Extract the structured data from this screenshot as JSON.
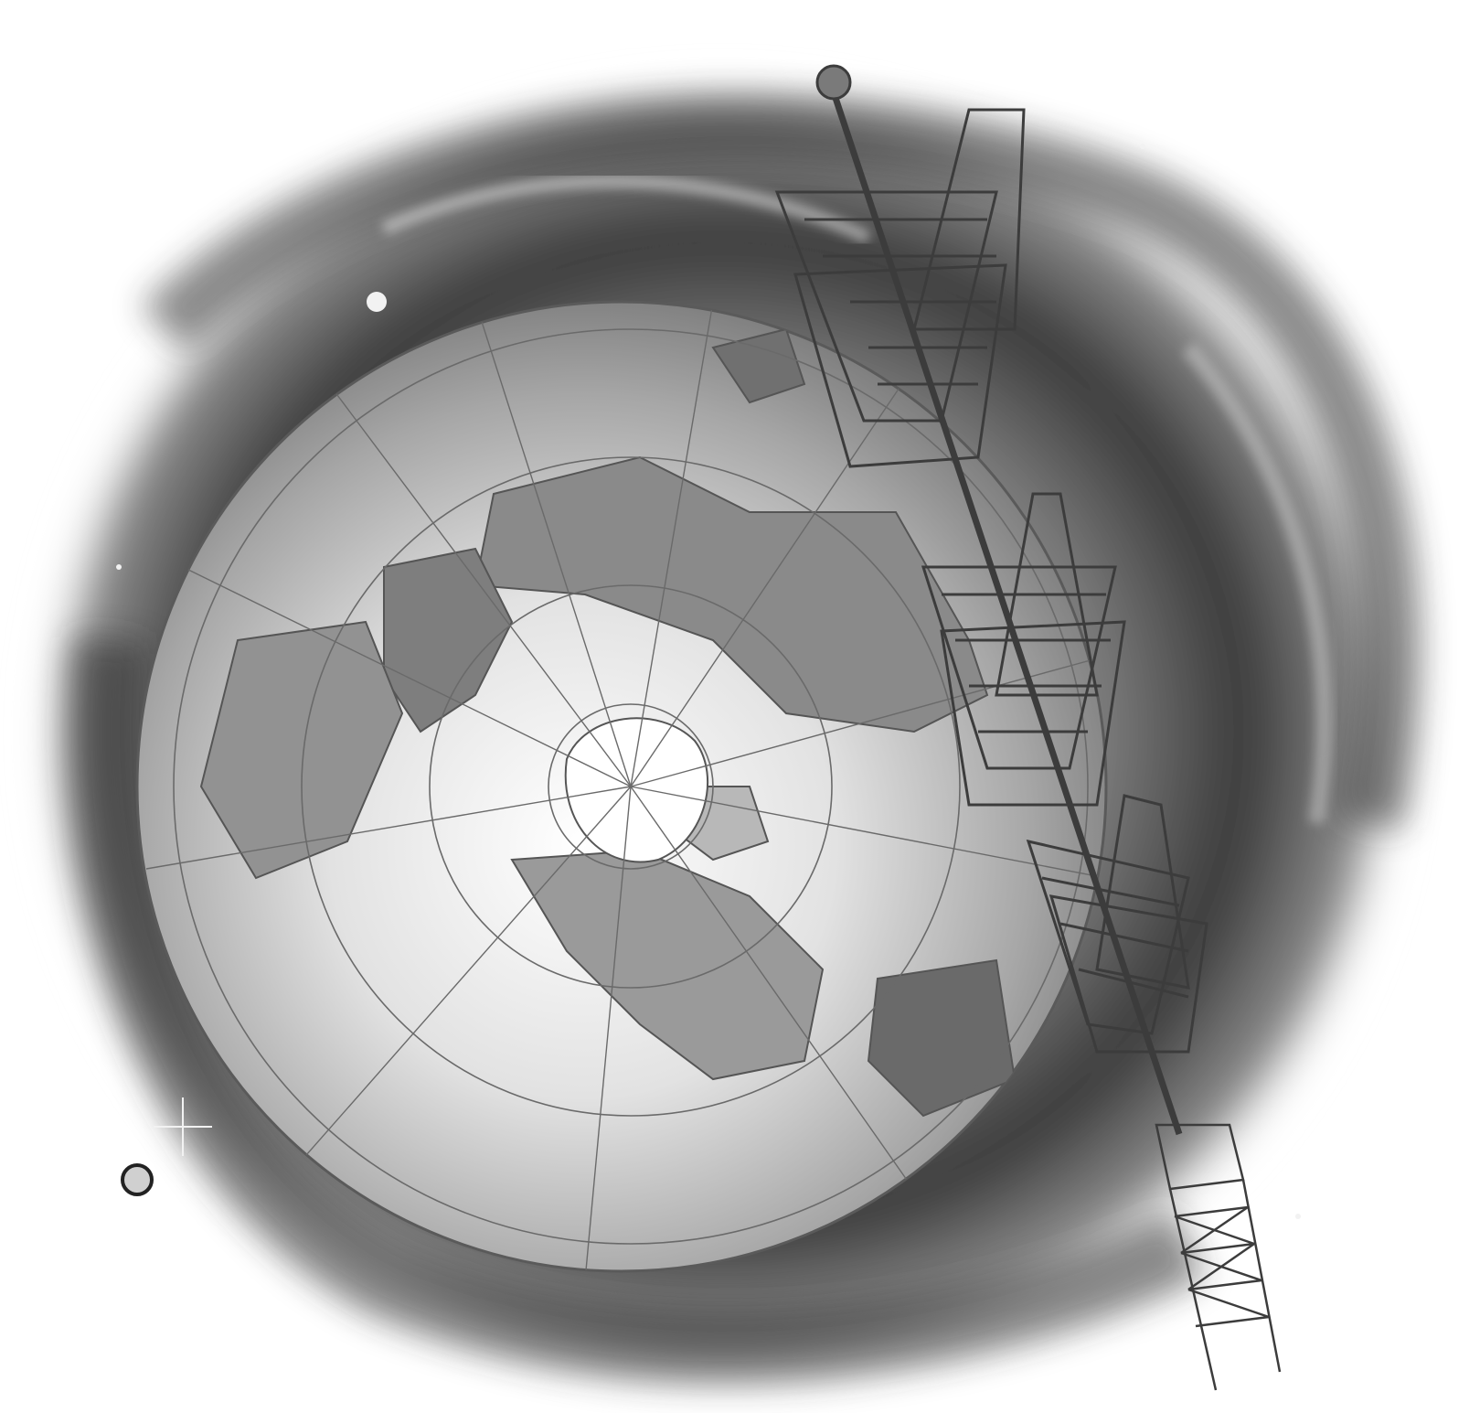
{
  "illustration": {
    "subject": "",
    "colors": {
      "paper": "#ffffff",
      "haze_dark": "#3a3a3a",
      "haze_mid": "#8a8a8a",
      "globe_light": "#f4f4f4",
      "globe_edge": "#9c9c9c",
      "land": "#6e6e6e",
      "ice": "#ffffff",
      "antenna": "#4a4a4a"
    },
    "icons": [
      "globe-icon",
      "antenna-tower-icon",
      "star-icon"
    ]
  }
}
